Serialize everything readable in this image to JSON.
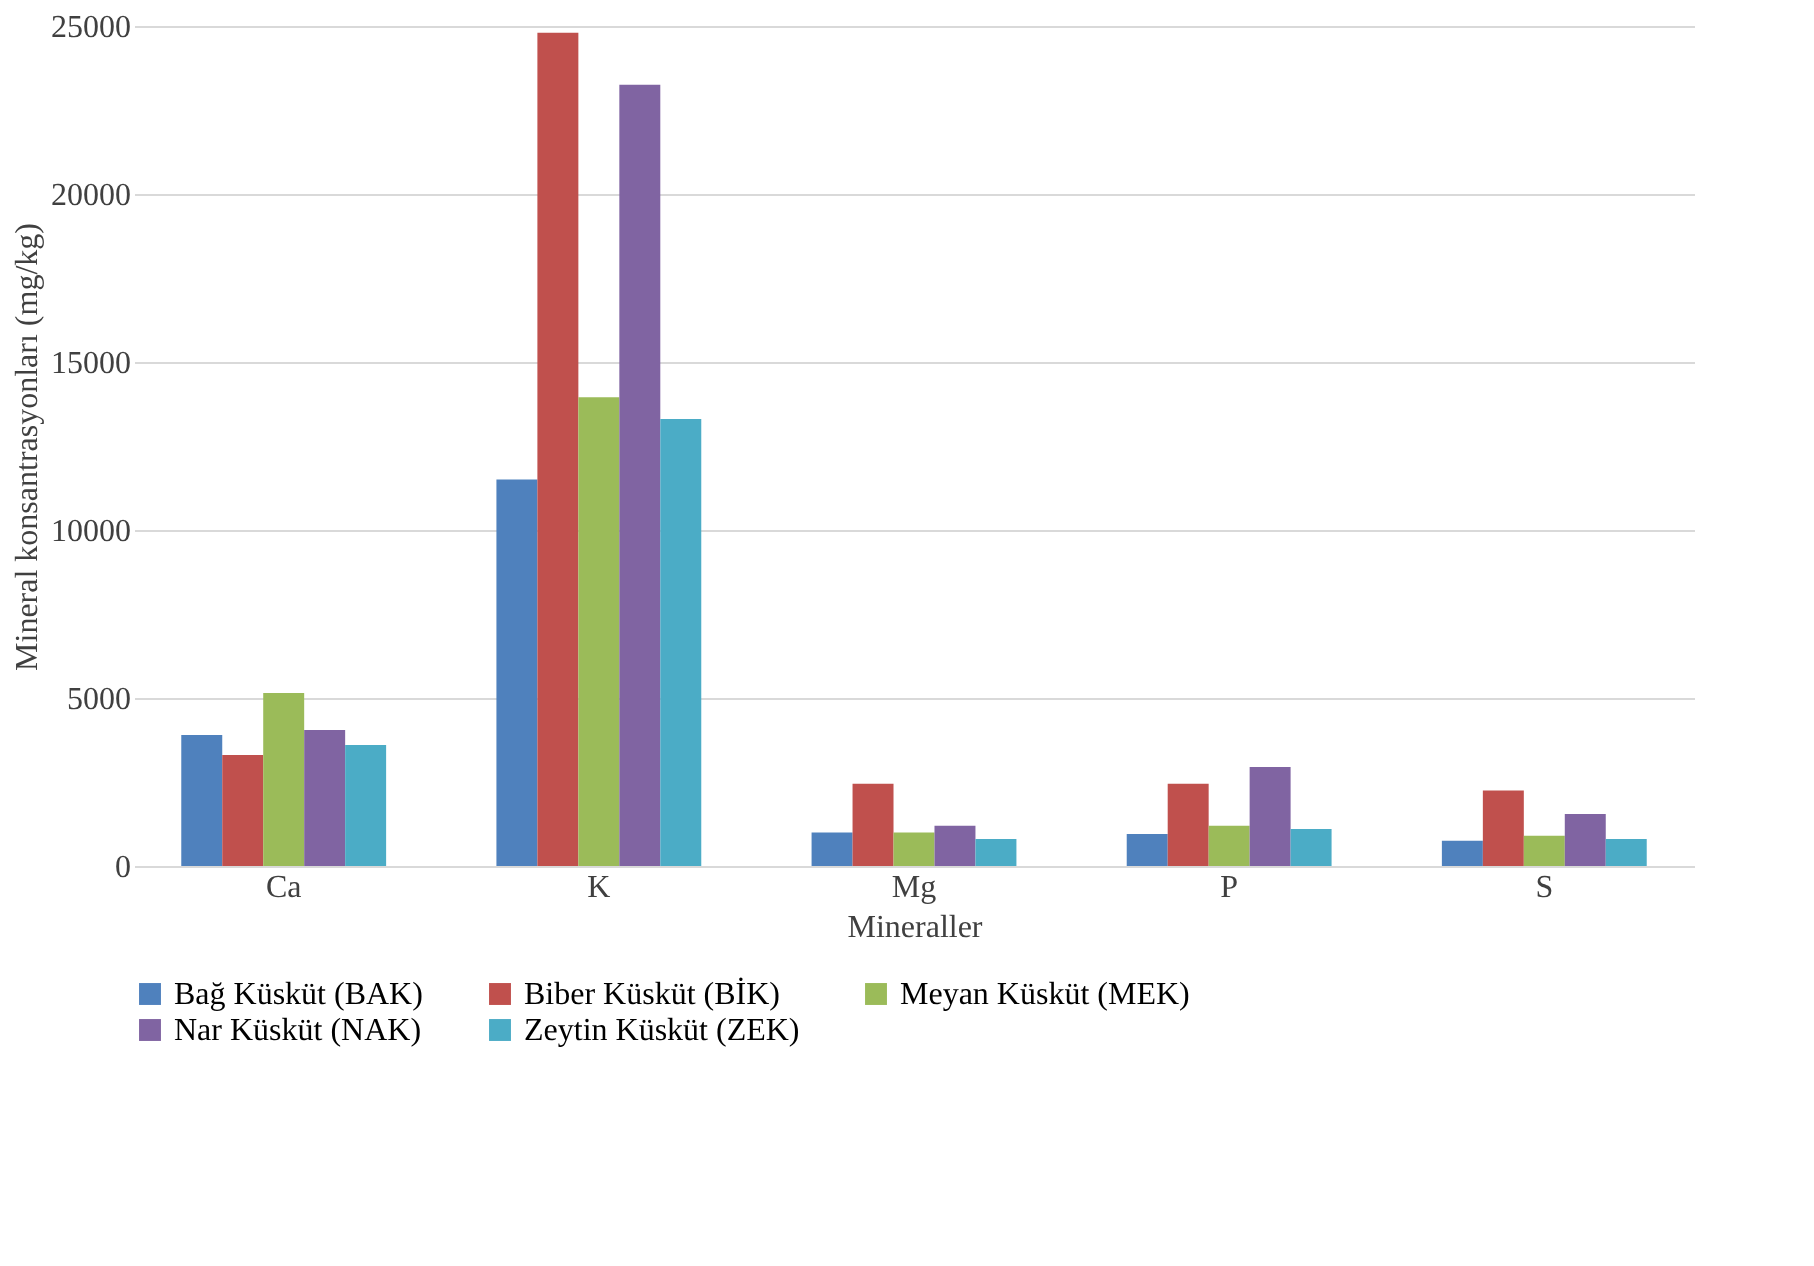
{
  "chart_data": {
    "type": "bar",
    "xlabel": "Mineraller",
    "ylabel": "Mineral konsantrasyonları (mg/kg)",
    "categories": [
      "Ca",
      "K",
      "Mg",
      "P",
      "S"
    ],
    "series": [
      {
        "name": "Bağ Küsküt (BAK)",
        "color": "#4f81bd",
        "values": [
          3900,
          11500,
          1000,
          950,
          750
        ]
      },
      {
        "name": "Biber Küsküt (BİK)",
        "color": "#c0504d",
        "values": [
          3300,
          24800,
          2450,
          2450,
          2250
        ]
      },
      {
        "name": "Meyan Küsküt (MEK)",
        "color": "#9bbb59",
        "values": [
          5150,
          13950,
          1000,
          1200,
          900
        ]
      },
      {
        "name": "Nar Küsküt (NAK)",
        "color": "#8064a2",
        "values": [
          4050,
          23250,
          1200,
          2950,
          1550
        ]
      },
      {
        "name": "Zeytin Küsküt (ZEK)",
        "color": "#4bacc6",
        "values": [
          3600,
          13300,
          800,
          1100,
          800
        ]
      }
    ],
    "ylim": [
      0,
      25000
    ],
    "yticks": [
      0,
      5000,
      10000,
      15000,
      20000,
      25000
    ],
    "grid": "y",
    "legend": "bottom"
  }
}
